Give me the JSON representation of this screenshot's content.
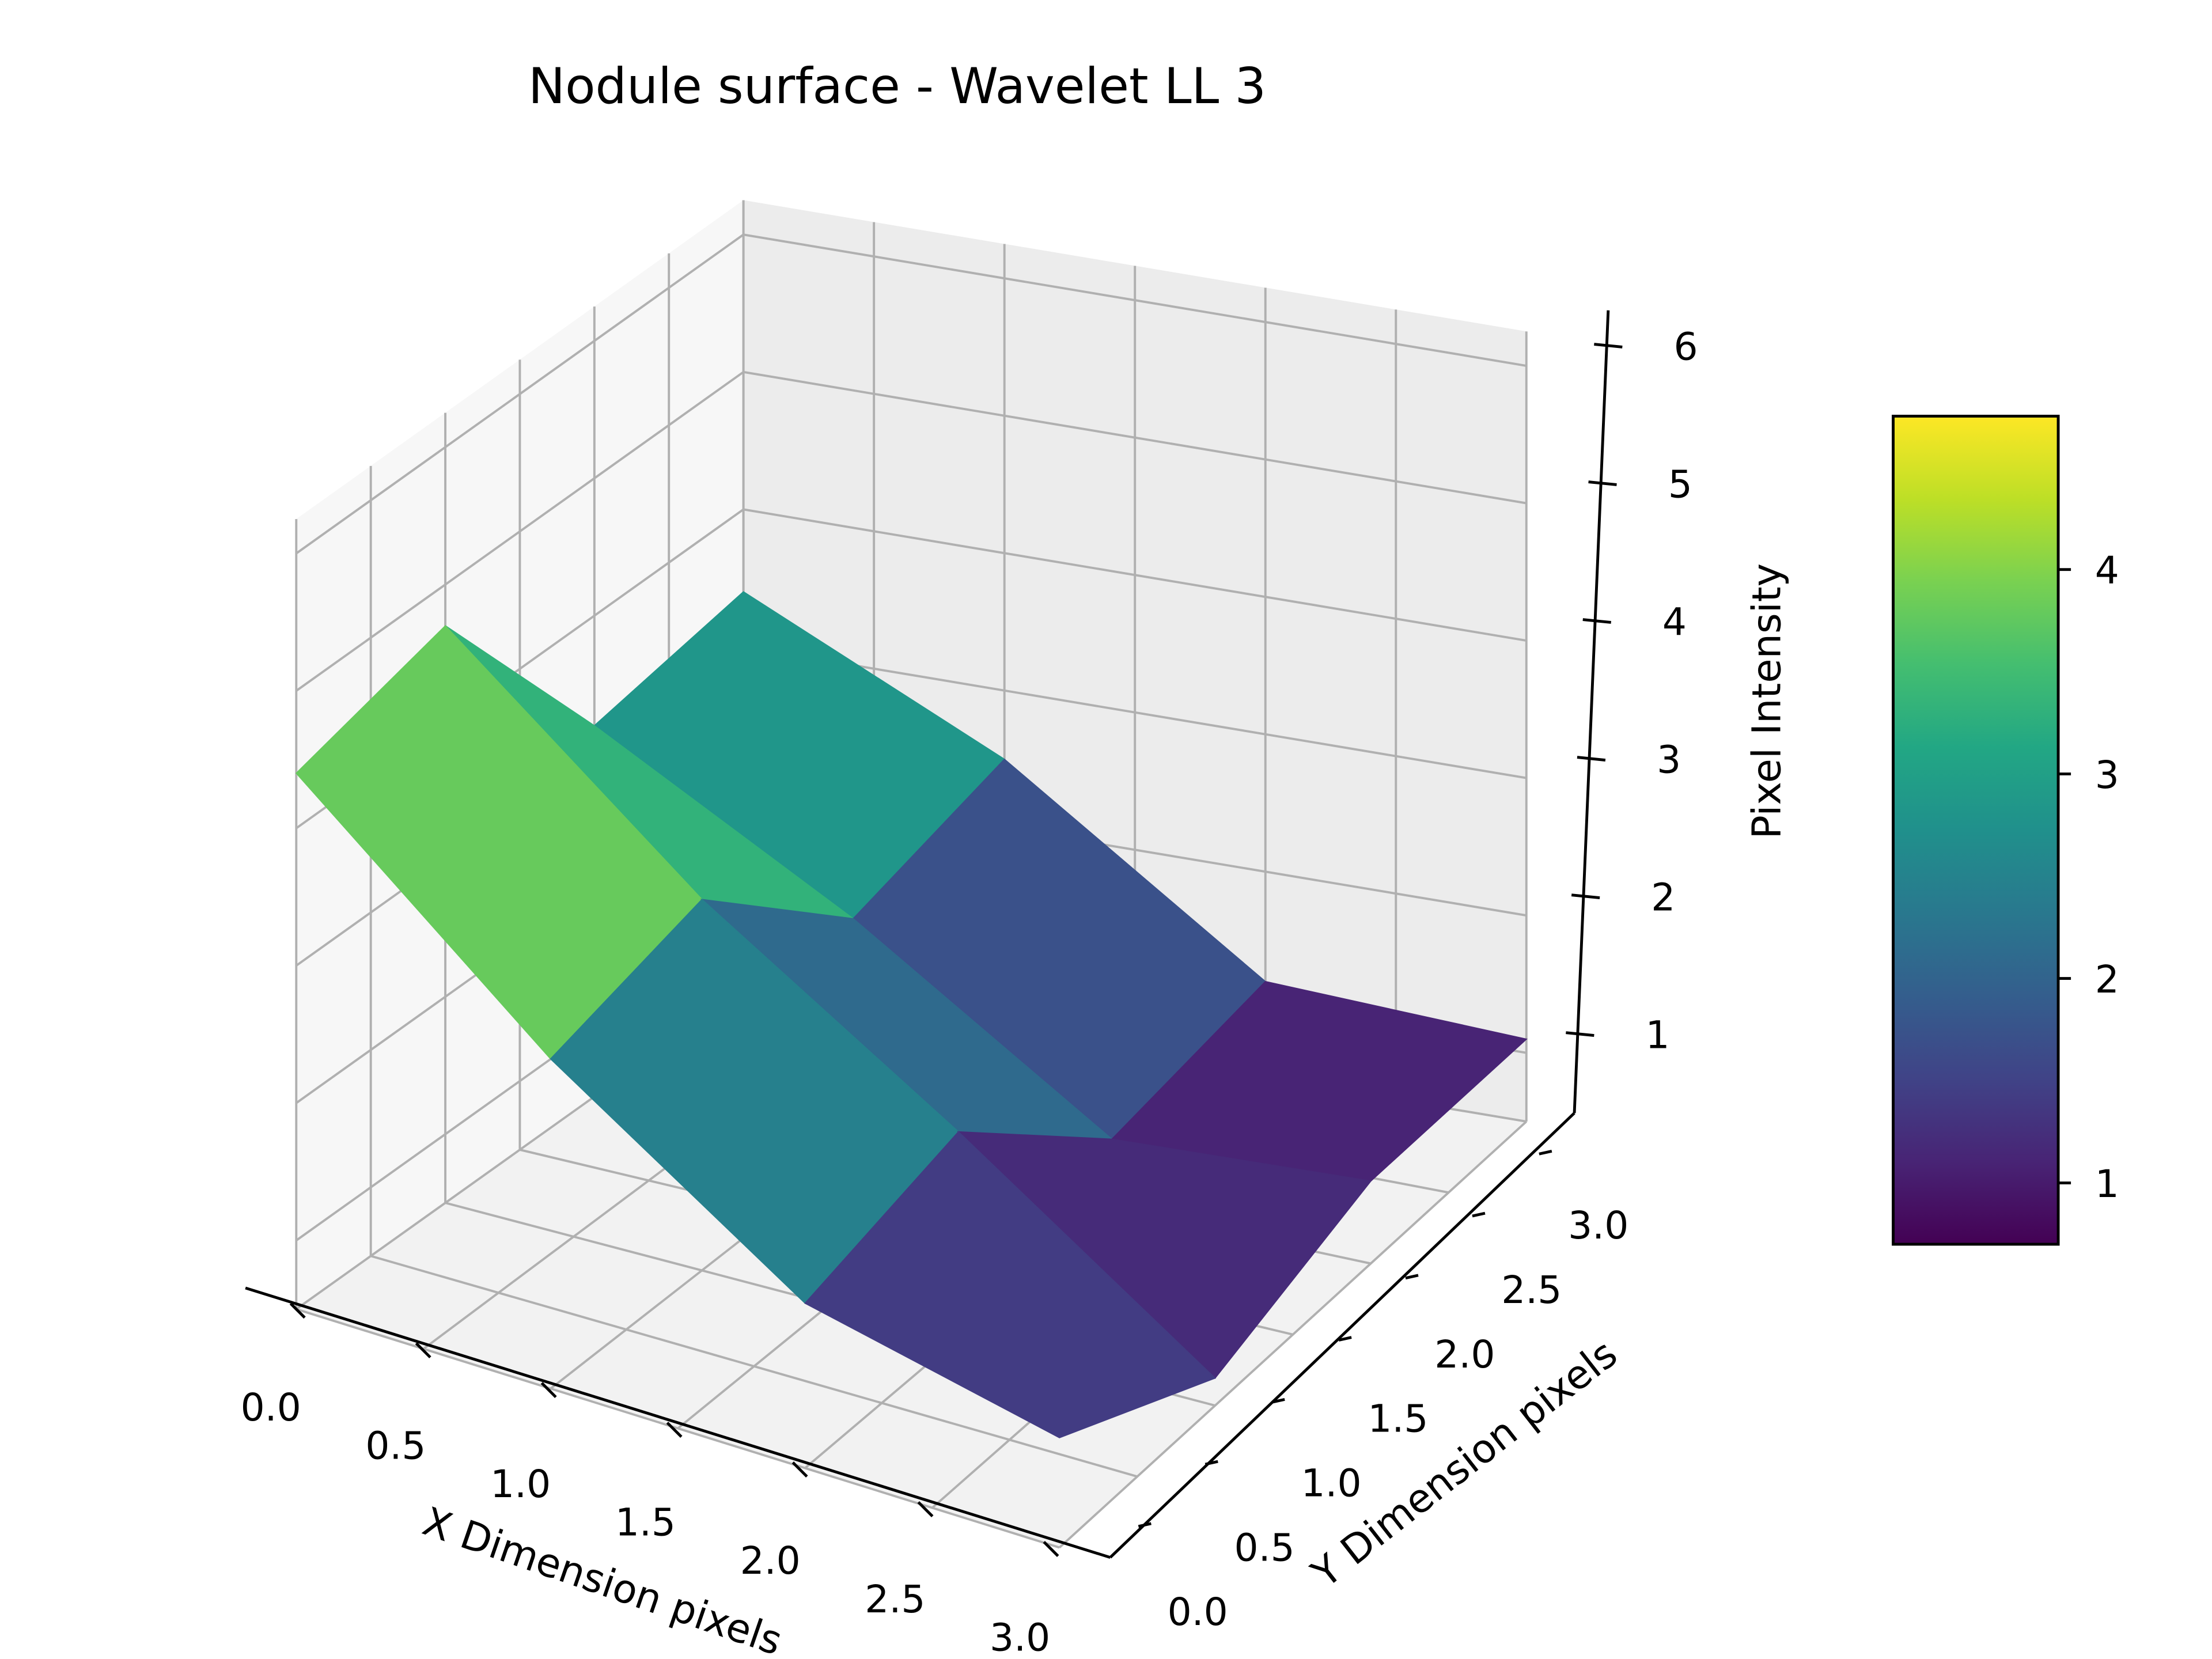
{
  "chart_data": {
    "type": "surface3d",
    "title": "Nodule surface - Wavelet LL 3",
    "xlabel": "X Dimension pixels",
    "ylabel": "Y Dimension pixels",
    "zlabel": "Pixel Intensity",
    "x": [
      0,
      1,
      2,
      3
    ],
    "y": [
      0,
      1,
      2,
      3
    ],
    "z": [
      [
        4.4,
        4.7,
        3.2,
        3.4
      ],
      [
        2.9,
        3.2,
        2.2,
        2.5
      ],
      [
        1.7,
        2.0,
        1.0,
        1.2
      ],
      [
        1.3,
        0.7,
        1.1,
        1.1
      ]
    ],
    "xticks": [
      "0.0",
      "0.5",
      "1.0",
      "1.5",
      "2.0",
      "2.5",
      "3.0"
    ],
    "yticks": [
      "0.0",
      "0.5",
      "1.0",
      "1.5",
      "2.0",
      "2.5",
      "3.0"
    ],
    "zticks": [
      "1",
      "2",
      "3",
      "4",
      "5",
      "6"
    ],
    "colormap": "viridis",
    "colorbar": {
      "range": [
        0.7,
        4.75
      ],
      "ticks": [
        "1",
        "2",
        "3",
        "4"
      ]
    },
    "grid": true
  }
}
